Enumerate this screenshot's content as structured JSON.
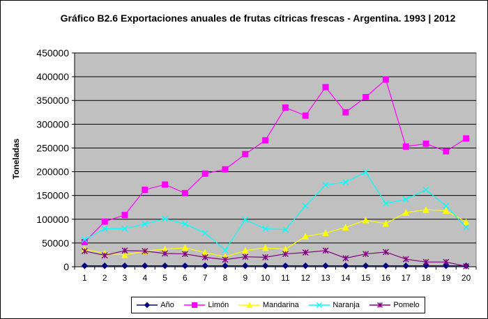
{
  "chart_data": {
    "type": "line",
    "title": "Gráfico B2.6 Exportaciones anuales de frutas cítricas frescas - Argentina. 1993 | 2012",
    "xlabel": "",
    "ylabel": "Toneladas",
    "ylim": [
      0,
      450000
    ],
    "yticks": [
      "0",
      "50000",
      "100000",
      "150000",
      "200000",
      "250000",
      "300000",
      "350000",
      "400000",
      "450000"
    ],
    "categories": [
      "1",
      "2",
      "3",
      "4",
      "5",
      "6",
      "7",
      "8",
      "9",
      "10",
      "11",
      "12",
      "13",
      "14",
      "15",
      "16",
      "17",
      "18",
      "19",
      "20"
    ],
    "grid": true,
    "legend_position": "bottom",
    "series": [
      {
        "name": "Año",
        "color": "#000080",
        "marker": "diamond",
        "values": [
          1993,
          1994,
          1995,
          1996,
          1997,
          1998,
          1999,
          2000,
          2001,
          2002,
          2003,
          2004,
          2005,
          2006,
          2007,
          2008,
          2009,
          2010,
          2011,
          2012
        ]
      },
      {
        "name": "Limón",
        "color": "#ff00ff",
        "marker": "square",
        "values": [
          52000,
          95000,
          109000,
          162000,
          173000,
          155000,
          196000,
          205000,
          237000,
          266000,
          335000,
          318000,
          378000,
          325000,
          357000,
          394000,
          253000,
          259000,
          243000,
          270000
        ]
      },
      {
        "name": "Mandarina",
        "color": "#ffff00",
        "marker": "triangle",
        "values": [
          37000,
          28000,
          25000,
          33000,
          37000,
          40000,
          30000,
          21000,
          34000,
          40000,
          37000,
          64000,
          71000,
          83000,
          98000,
          91000,
          114000,
          120000,
          118000,
          94000
        ]
      },
      {
        "name": "Naranja",
        "color": "#00ffff",
        "marker": "x",
        "values": [
          57000,
          80000,
          80000,
          90000,
          101000,
          90000,
          71000,
          35000,
          99000,
          80000,
          78000,
          128000,
          172000,
          178000,
          199000,
          133000,
          142000,
          162000,
          128000,
          83000
        ]
      },
      {
        "name": "Pomelo",
        "color": "#800080",
        "marker": "star",
        "values": [
          33000,
          24000,
          34000,
          33000,
          28000,
          27000,
          20000,
          15000,
          21000,
          20000,
          27000,
          30000,
          34000,
          18000,
          27000,
          31000,
          16000,
          10000,
          10000,
          1000
        ]
      }
    ]
  }
}
